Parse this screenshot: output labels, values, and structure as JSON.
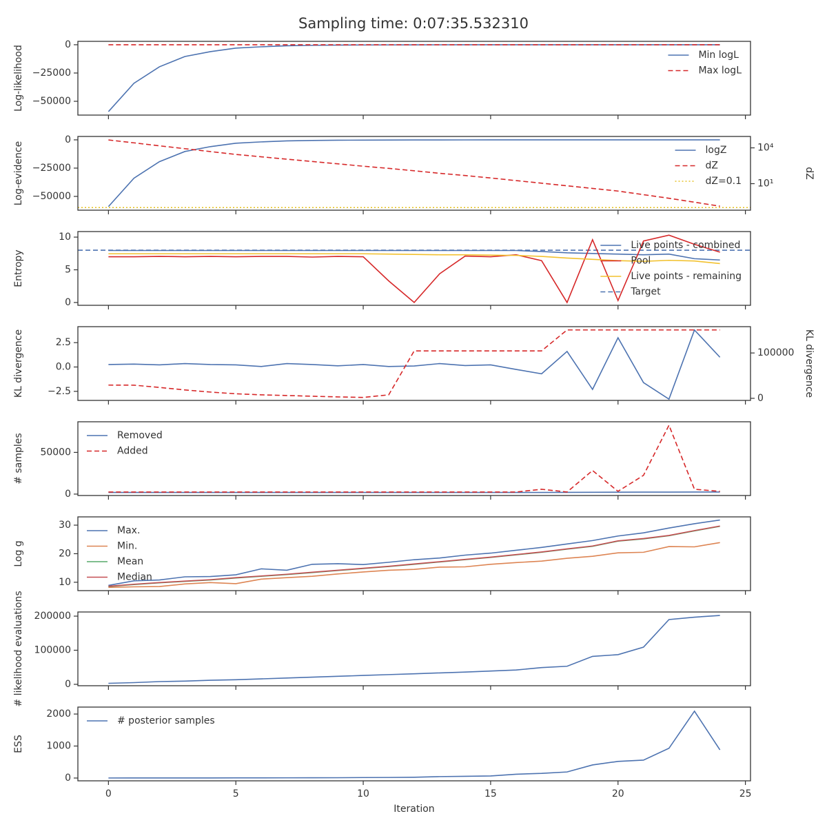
{
  "title": "Sampling time: 0:07:35.532310",
  "chart_data": [
    {
      "type": "line",
      "ylabel": "Log-likelihood",
      "legend": "upper right",
      "x": [
        0,
        1,
        2,
        3,
        4,
        5,
        6,
        7,
        8,
        9,
        10,
        11,
        12,
        13,
        14,
        15,
        16,
        17,
        18,
        19,
        20,
        21,
        22,
        23,
        24
      ],
      "xlim": [
        -1.2,
        25.2
      ],
      "xticks": [
        0,
        5,
        10,
        15,
        20,
        25
      ],
      "ylim": [
        -62200,
        3000
      ],
      "yticks": [
        {
          "value": -50000,
          "label": "−50000"
        },
        {
          "value": -25000,
          "label": "−25000"
        },
        0
      ],
      "series": [
        {
          "name": "Min logL",
          "color": "#4c72b0",
          "dash": "solid",
          "values": [
            -59100,
            -34100,
            -19500,
            -10400,
            -6100,
            -3000,
            -1800,
            -900,
            -500,
            -300,
            -200,
            -120,
            -80,
            -50,
            -30,
            -20,
            -15,
            -10,
            -8,
            -6,
            -5,
            -4,
            -3,
            -2,
            -1
          ]
        },
        {
          "name": "Max logL",
          "color": "#d62728",
          "dash": "dashed",
          "values": [
            0,
            0,
            0,
            0,
            0,
            0,
            0,
            0,
            0,
            0,
            0,
            0,
            0,
            0,
            0,
            0,
            0,
            0,
            0,
            0,
            0,
            0,
            0,
            0,
            0
          ]
        }
      ]
    },
    {
      "type": "line",
      "ylabel": "Log-evidence",
      "y2label": "dZ",
      "legend": "upper right",
      "x": [
        0,
        1,
        2,
        3,
        4,
        5,
        6,
        7,
        8,
        9,
        10,
        11,
        12,
        13,
        14,
        15,
        16,
        17,
        18,
        19,
        20,
        21,
        22,
        23,
        24
      ],
      "xlim": [
        -1.2,
        25.2
      ],
      "xticks": [
        0,
        5,
        10,
        15,
        20,
        25
      ],
      "ylim": [
        -62200,
        3000
      ],
      "yticks": [
        {
          "value": -50000,
          "label": "−50000"
        },
        {
          "value": -25000,
          "label": "−25000"
        },
        0
      ],
      "y2lim": [
        0.06,
        90000
      ],
      "y2scale": "log",
      "y2ticks": [
        {
          "value": 10,
          "label": "10¹"
        },
        {
          "value": 10000,
          "label": "10⁴"
        }
      ],
      "series": [
        {
          "name": "logZ",
          "color": "#4c72b0",
          "dash": "solid",
          "values": [
            -59000,
            -33900,
            -19300,
            -10300,
            -6000,
            -3000,
            -1800,
            -950,
            -560,
            -340,
            -210,
            -140,
            -90,
            -60,
            -40,
            -28,
            -20,
            -15,
            -12,
            -10,
            -9,
            -8,
            -7,
            -6,
            -6
          ]
        },
        {
          "name": "dZ",
          "color": "#d62728",
          "dash": "dashed",
          "axis": "y2",
          "values": [
            45700,
            26300,
            14800,
            8500,
            4900,
            2800,
            1780,
            1120,
            720,
            460,
            290,
            190,
            120,
            74,
            48,
            30,
            18,
            11,
            6.6,
            4.0,
            2.4,
            1.2,
            0.6,
            0.28,
            0.13
          ]
        }
      ],
      "hlines": [
        {
          "name": "dZ=0.1",
          "value": 0.1,
          "axis": "y2",
          "color": "#e6c229",
          "dash": "dotted"
        }
      ]
    },
    {
      "type": "line",
      "ylabel": "Entropy",
      "legend": "upper right",
      "x": [
        0,
        1,
        2,
        3,
        4,
        5,
        6,
        7,
        8,
        9,
        10,
        11,
        12,
        13,
        14,
        15,
        16,
        17,
        18,
        19,
        20,
        21,
        22,
        23,
        24
      ],
      "xlim": [
        -1.2,
        25.2
      ],
      "xticks": [
        0,
        5,
        10,
        15,
        20,
        25
      ],
      "ylim": [
        -0.43,
        10.85
      ],
      "yticks": [
        0,
        5,
        10
      ],
      "series": [
        {
          "name": "Live points - combined",
          "color": "#4c72b0",
          "dash": "solid",
          "values": [
            7.95,
            7.95,
            7.95,
            7.95,
            7.95,
            7.95,
            7.95,
            7.95,
            7.95,
            7.95,
            7.95,
            7.95,
            7.95,
            7.95,
            7.95,
            7.95,
            7.95,
            7.8,
            7.6,
            7.5,
            7.4,
            7.3,
            7.4,
            6.7,
            6.5
          ]
        },
        {
          "name": "Pool",
          "color": "#d62728",
          "dash": "solid",
          "values": [
            7.0,
            7.0,
            7.05,
            7.0,
            7.05,
            7.0,
            7.05,
            7.05,
            6.95,
            7.05,
            7.0,
            3.3,
            0,
            4.4,
            7.1,
            7.0,
            7.3,
            6.4,
            0,
            9.6,
            0.3,
            9.4,
            10.3,
            8.9,
            7.7
          ]
        },
        {
          "name": "Live points - remaining",
          "color": "#f2c12e",
          "dash": "solid",
          "values": [
            7.45,
            7.45,
            7.45,
            7.45,
            7.45,
            7.45,
            7.45,
            7.45,
            7.45,
            7.45,
            7.45,
            7.4,
            7.35,
            7.3,
            7.3,
            7.25,
            7.2,
            7.05,
            6.8,
            6.6,
            6.4,
            6.3,
            6.45,
            6.35,
            5.95
          ]
        }
      ],
      "hlines": [
        {
          "name": "Target",
          "value": 8,
          "color": "#4c72b0",
          "dash": "dashed"
        }
      ]
    },
    {
      "type": "line",
      "ylabel": "KL divergence",
      "y2label": "KL divergence",
      "x": [
        0,
        1,
        2,
        3,
        4,
        5,
        6,
        7,
        8,
        9,
        10,
        11,
        12,
        13,
        14,
        15,
        16,
        17,
        18,
        19,
        20,
        21,
        22,
        23,
        24
      ],
      "xlim": [
        -1.2,
        25.2
      ],
      "xticks": [
        0,
        5,
        10,
        15,
        20,
        25
      ],
      "ylim": [
        -3.43,
        4.14
      ],
      "yticks": [
        {
          "value": -2.5,
          "label": "−2.5"
        },
        {
          "value": 0,
          "label": "0.0"
        },
        2.5
      ],
      "y2lim": [
        -4600,
        158000
      ],
      "y2ticks": [
        0,
        100000
      ],
      "series": [
        {
          "color": "#4c72b0",
          "dash": "solid",
          "values": [
            0.25,
            0.3,
            0.22,
            0.35,
            0.25,
            0.22,
            0.05,
            0.35,
            0.25,
            0.12,
            0.25,
            0.05,
            0.1,
            0.35,
            0.15,
            0.22,
            -0.25,
            -0.7,
            1.6,
            -2.3,
            3.0,
            -1.6,
            -3.3,
            3.8,
            1.0
          ]
        },
        {
          "color": "#d62728",
          "dash": "dashed",
          "axis": "y2",
          "values": [
            29200,
            29000,
            24000,
            18500,
            13800,
            10000,
            7700,
            6200,
            4600,
            3100,
            2000,
            7700,
            104600,
            104600,
            104600,
            104600,
            104600,
            104600,
            150800,
            150800,
            150800,
            150800,
            150800,
            150800,
            150800
          ]
        }
      ]
    },
    {
      "type": "line",
      "ylabel": "# samples",
      "legend": "upper left",
      "x": [
        0,
        1,
        2,
        3,
        4,
        5,
        6,
        7,
        8,
        9,
        10,
        11,
        12,
        13,
        14,
        15,
        16,
        17,
        18,
        19,
        20,
        21,
        22,
        23,
        24
      ],
      "xlim": [
        -1.2,
        25.2
      ],
      "xticks": [
        0,
        5,
        10,
        15,
        20,
        25
      ],
      "ylim": [
        -1700,
        86700
      ],
      "yticks": [
        0,
        50000
      ],
      "series": [
        {
          "name": "Removed",
          "color": "#4c72b0",
          "dash": "solid",
          "values": [
            2000,
            2000,
            2000,
            2000,
            2000,
            2000,
            2000,
            2000,
            2000,
            2000,
            2000,
            2000,
            2000,
            2000,
            2000,
            2000,
            2000,
            2000,
            2100,
            2200,
            2300,
            2400,
            2400,
            2500,
            2500
          ]
        },
        {
          "name": "Added",
          "color": "#d62728",
          "dash": "dashed",
          "values": [
            2500,
            2500,
            2500,
            2500,
            2500,
            2500,
            2500,
            2500,
            2500,
            2500,
            2500,
            2500,
            2500,
            2500,
            2500,
            2500,
            2500,
            5800,
            2500,
            28300,
            3300,
            22500,
            82500,
            5800,
            3300
          ]
        }
      ]
    },
    {
      "type": "line",
      "ylabel": "Log g",
      "legend": "upper left",
      "x": [
        0,
        1,
        2,
        3,
        4,
        5,
        6,
        7,
        8,
        9,
        10,
        11,
        12,
        13,
        14,
        15,
        16,
        17,
        18,
        19,
        20,
        21,
        22,
        23,
        24
      ],
      "xlim": [
        -1.2,
        25.2
      ],
      "xticks": [
        0,
        5,
        10,
        15,
        20,
        25
      ],
      "ylim": [
        7.07,
        32.9
      ],
      "yticks": [
        10,
        20,
        30
      ],
      "series": [
        {
          "name": "Max.",
          "color": "#4c72b0",
          "dash": "solid",
          "values": [
            8.9,
            10.5,
            10.8,
            11.9,
            12.0,
            12.6,
            14.7,
            14.2,
            16.3,
            16.5,
            16.2,
            17.0,
            17.9,
            18.5,
            19.5,
            20.2,
            21.2,
            22.2,
            23.4,
            24.6,
            26.2,
            27.3,
            29.0,
            30.5,
            31.8
          ]
        },
        {
          "name": "Min.",
          "color": "#dd8452",
          "dash": "solid",
          "values": [
            8.2,
            8.4,
            8.5,
            9.4,
            9.9,
            9.5,
            11.1,
            11.6,
            12.1,
            12.9,
            13.6,
            14.2,
            14.5,
            15.3,
            15.4,
            16.3,
            16.9,
            17.4,
            18.4,
            19.1,
            20.3,
            20.5,
            22.5,
            22.4,
            23.9
          ]
        },
        {
          "name": "Mean",
          "color": "#55a868",
          "dash": "solid",
          "values": [
            8.5,
            9.2,
            9.8,
            10.3,
            10.8,
            11.5,
            12.1,
            12.7,
            13.4,
            14.1,
            14.8,
            15.5,
            16.3,
            17.1,
            17.9,
            18.7,
            19.6,
            20.5,
            21.6,
            22.6,
            24.4,
            25.2,
            26.3,
            28.0,
            29.6
          ]
        },
        {
          "name": "Median",
          "color": "#c44e52",
          "dash": "solid",
          "values": [
            8.6,
            9.3,
            9.9,
            10.4,
            10.9,
            11.6,
            12.2,
            12.8,
            13.5,
            14.2,
            14.9,
            15.6,
            16.4,
            17.2,
            18.0,
            18.8,
            19.7,
            20.6,
            21.7,
            22.7,
            24.5,
            25.3,
            26.4,
            28.1,
            29.7
          ]
        }
      ]
    },
    {
      "type": "line",
      "ylabel": "# likelihood evaluations",
      "x": [
        0,
        1,
        2,
        3,
        4,
        5,
        6,
        7,
        8,
        9,
        10,
        11,
        12,
        13,
        14,
        15,
        16,
        17,
        18,
        19,
        20,
        21,
        22,
        23,
        24
      ],
      "xlim": [
        -1.2,
        25.2
      ],
      "xticks": [
        0,
        5,
        10,
        15,
        20,
        25
      ],
      "ylim": [
        -4100,
        212200
      ],
      "yticks": [
        0,
        100000,
        200000
      ],
      "series": [
        {
          "color": "#4c72b0",
          "dash": "solid",
          "values": [
            3000,
            5000,
            8000,
            9500,
            12000,
            13500,
            16000,
            18500,
            21000,
            23500,
            26000,
            28500,
            31000,
            33500,
            36000,
            39000,
            42000,
            49000,
            53000,
            82000,
            87000,
            109000,
            190000,
            197000,
            202000
          ]
        }
      ]
    },
    {
      "type": "line",
      "ylabel": "ESS",
      "xlabel": "Iteration",
      "legend": "upper left",
      "x": [
        0,
        1,
        2,
        3,
        4,
        5,
        6,
        7,
        8,
        9,
        10,
        11,
        12,
        13,
        14,
        15,
        16,
        17,
        18,
        19,
        20,
        21,
        22,
        23,
        24
      ],
      "xlim": [
        -1.2,
        25.2
      ],
      "xticks": [
        0,
        5,
        10,
        15,
        20,
        25
      ],
      "ylim": [
        -87,
        2217
      ],
      "yticks": [
        0,
        1000,
        2000
      ],
      "series": [
        {
          "name": "# posterior samples",
          "color": "#4c72b0",
          "dash": "solid",
          "values": [
            2,
            3,
            3,
            4,
            4,
            5,
            6,
            7,
            8,
            10,
            15,
            18,
            25,
            45,
            55,
            65,
            120,
            145,
            190,
            410,
            520,
            560,
            930,
            2090,
            880
          ]
        }
      ]
    }
  ]
}
